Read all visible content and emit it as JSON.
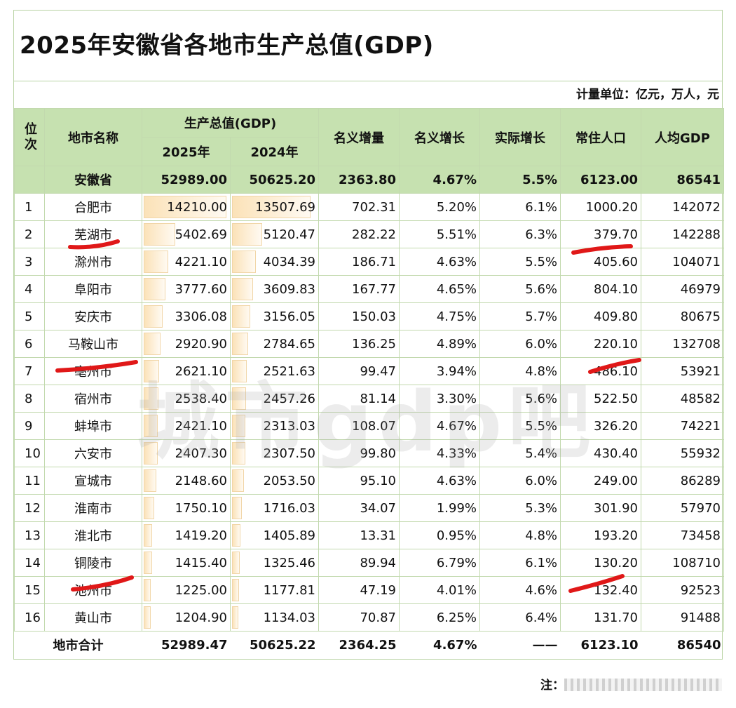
{
  "title": "2025年安徽省各地市生产总值(GDP)",
  "unit_note": "计量单位：亿元，万人，元",
  "headers": {
    "rank": "位次",
    "city": "地市名称",
    "gdp": "生产总值(GDP)",
    "y2025": "2025年",
    "y2024": "2024年",
    "nominal_increase": "名义增量",
    "nominal_growth": "名义增长",
    "real_growth": "实际增长",
    "population": "常住人口",
    "per_capita": "人均GDP"
  },
  "province": {
    "name": "安徽省",
    "gdp2025": "52989.00",
    "gdp2024": "50625.20",
    "increase": "2363.80",
    "nominal": "4.67%",
    "real": "5.5%",
    "pop": "6123.00",
    "per": "86541"
  },
  "rows": [
    {
      "rank": "1",
      "city": "合肥市",
      "gdp2025": "14210.00",
      "gdp2024": "13507.69",
      "increase": "702.31",
      "nominal": "5.20%",
      "real": "6.1%",
      "pop": "1000.20",
      "per": "142072"
    },
    {
      "rank": "2",
      "city": "芜湖市",
      "gdp2025": "5402.69",
      "gdp2024": "5120.47",
      "increase": "282.22",
      "nominal": "5.51%",
      "real": "6.3%",
      "pop": "379.70",
      "per": "142288"
    },
    {
      "rank": "3",
      "city": "滁州市",
      "gdp2025": "4221.10",
      "gdp2024": "4034.39",
      "increase": "186.71",
      "nominal": "4.63%",
      "real": "5.5%",
      "pop": "405.60",
      "per": "104071"
    },
    {
      "rank": "4",
      "city": "阜阳市",
      "gdp2025": "3777.60",
      "gdp2024": "3609.83",
      "increase": "167.77",
      "nominal": "4.65%",
      "real": "5.6%",
      "pop": "804.10",
      "per": "46979"
    },
    {
      "rank": "5",
      "city": "安庆市",
      "gdp2025": "3306.08",
      "gdp2024": "3156.05",
      "increase": "150.03",
      "nominal": "4.75%",
      "real": "5.7%",
      "pop": "409.80",
      "per": "80675"
    },
    {
      "rank": "6",
      "city": "马鞍山市",
      "gdp2025": "2920.90",
      "gdp2024": "2784.65",
      "increase": "136.25",
      "nominal": "4.89%",
      "real": "6.0%",
      "pop": "220.10",
      "per": "132708"
    },
    {
      "rank": "7",
      "city": "亳州市",
      "gdp2025": "2621.10",
      "gdp2024": "2521.63",
      "increase": "99.47",
      "nominal": "3.94%",
      "real": "4.8%",
      "pop": "486.10",
      "per": "53921"
    },
    {
      "rank": "8",
      "city": "宿州市",
      "gdp2025": "2538.40",
      "gdp2024": "2457.26",
      "increase": "81.14",
      "nominal": "3.30%",
      "real": "5.6%",
      "pop": "522.50",
      "per": "48582"
    },
    {
      "rank": "9",
      "city": "蚌埠市",
      "gdp2025": "2421.10",
      "gdp2024": "2313.03",
      "increase": "108.07",
      "nominal": "4.67%",
      "real": "5.5%",
      "pop": "326.20",
      "per": "74221"
    },
    {
      "rank": "10",
      "city": "六安市",
      "gdp2025": "2407.30",
      "gdp2024": "2307.50",
      "increase": "99.80",
      "nominal": "4.33%",
      "real": "5.4%",
      "pop": "430.40",
      "per": "55932"
    },
    {
      "rank": "11",
      "city": "宣城市",
      "gdp2025": "2148.60",
      "gdp2024": "2053.50",
      "increase": "95.10",
      "nominal": "4.63%",
      "real": "6.0%",
      "pop": "249.00",
      "per": "86289"
    },
    {
      "rank": "12",
      "city": "淮南市",
      "gdp2025": "1750.10",
      "gdp2024": "1716.03",
      "increase": "34.07",
      "nominal": "1.99%",
      "real": "5.3%",
      "pop": "301.90",
      "per": "57970"
    },
    {
      "rank": "13",
      "city": "淮北市",
      "gdp2025": "1419.20",
      "gdp2024": "1405.89",
      "increase": "13.31",
      "nominal": "0.95%",
      "real": "4.8%",
      "pop": "193.20",
      "per": "73458"
    },
    {
      "rank": "14",
      "city": "铜陵市",
      "gdp2025": "1415.40",
      "gdp2024": "1325.46",
      "increase": "89.94",
      "nominal": "6.79%",
      "real": "6.1%",
      "pop": "130.20",
      "per": "108710"
    },
    {
      "rank": "15",
      "city": "池州市",
      "gdp2025": "1225.00",
      "gdp2024": "1177.81",
      "increase": "47.19",
      "nominal": "4.01%",
      "real": "4.6%",
      "pop": "132.40",
      "per": "92523"
    },
    {
      "rank": "16",
      "city": "黄山市",
      "gdp2025": "1204.90",
      "gdp2024": "1134.03",
      "increase": "70.87",
      "nominal": "6.25%",
      "real": "6.4%",
      "pop": "131.70",
      "per": "91488"
    }
  ],
  "total": {
    "label": "地市合计",
    "gdp2025": "52989.47",
    "gdp2024": "50625.22",
    "increase": "2364.25",
    "nominal": "4.67%",
    "real": "——",
    "pop": "6123.10",
    "per": "86540"
  },
  "note_prefix": "注：",
  "watermark": "城市gdp吧",
  "colors": {
    "header_bg": "#c6e1b0",
    "grid": "#c2d9ae",
    "bar_fill": "#fbe2b8",
    "pen": "#e01818"
  }
}
